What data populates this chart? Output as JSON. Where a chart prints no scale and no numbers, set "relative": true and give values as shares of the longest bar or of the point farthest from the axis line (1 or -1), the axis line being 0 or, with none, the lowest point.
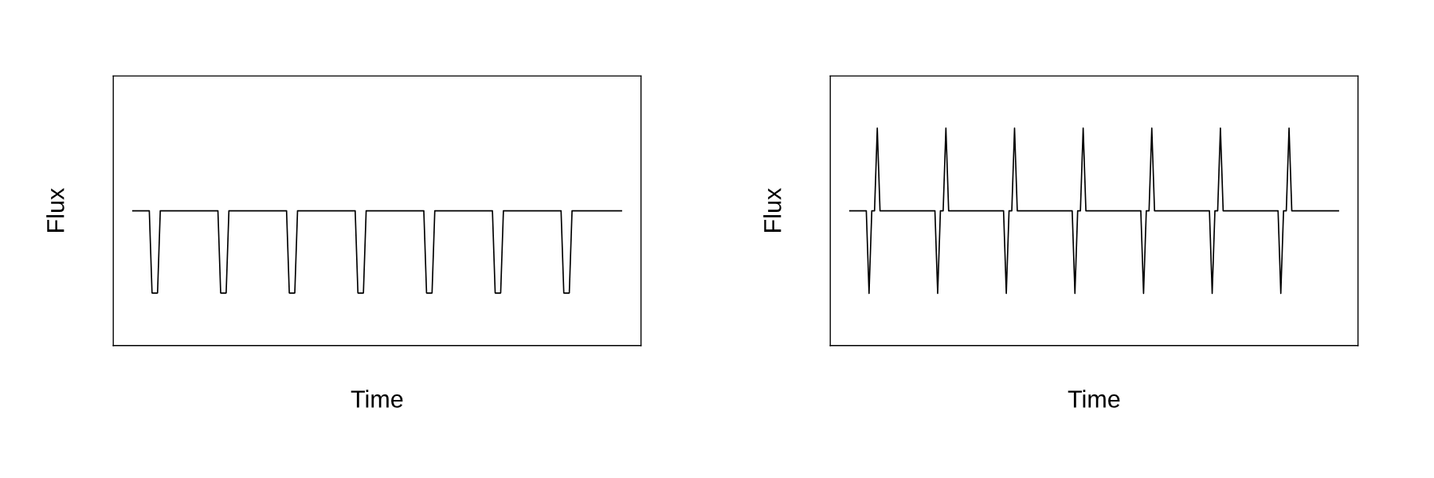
{
  "chart_data": [
    {
      "type": "line",
      "relative": true,
      "xlabel": "Time",
      "ylabel": "Flux",
      "tick_labels": false,
      "legend": false,
      "categories": [
        null,
        null,
        null,
        null,
        null,
        null,
        null,
        null,
        null,
        null,
        null,
        null,
        null,
        null,
        null,
        null,
        null,
        null,
        null,
        null,
        null,
        null,
        null,
        null,
        null,
        null,
        null,
        null,
        null,
        null,
        null,
        null,
        null,
        null,
        null,
        null,
        null,
        null,
        null,
        null,
        null,
        null,
        null,
        null,
        null,
        null,
        null,
        null,
        null,
        null,
        null,
        null,
        null,
        null,
        null,
        null,
        null,
        null,
        null,
        null,
        null,
        null,
        null,
        null,
        null,
        null,
        null,
        null,
        null,
        null,
        null,
        null,
        null,
        null,
        null,
        null,
        null,
        null,
        null,
        null,
        null,
        null,
        null,
        null,
        null,
        null,
        null,
        null,
        null,
        null,
        null,
        null,
        null,
        null,
        null,
        null,
        null,
        null,
        null,
        null,
        null,
        null,
        null,
        null,
        null,
        null,
        null,
        null,
        null,
        null,
        null,
        null,
        null,
        null,
        null,
        null,
        null,
        null,
        null,
        null,
        null,
        null,
        null,
        null,
        null,
        null,
        null,
        null,
        null,
        null,
        null,
        null,
        null,
        null,
        null,
        null,
        null,
        null,
        null,
        null,
        null,
        null,
        null,
        null,
        null,
        null,
        null,
        null,
        null,
        null,
        null,
        null,
        null,
        null,
        null,
        null,
        null,
        null,
        null,
        null,
        null,
        null,
        null,
        null,
        null,
        null,
        null,
        null,
        null,
        null,
        null,
        null,
        null,
        null,
        null,
        null,
        null,
        null,
        null
      ],
      "series": [
        {
          "color": "#000000",
          "values": [
            1,
            1,
            1,
            1,
            1,
            1,
            1,
            0.39,
            0.39,
            0.39,
            1,
            1,
            1,
            1,
            1,
            1,
            1,
            1,
            1,
            1,
            1,
            1,
            1,
            1,
            1,
            1,
            1,
            1,
            1,
            1,
            1,
            1,
            0.39,
            0.39,
            0.39,
            1,
            1,
            1,
            1,
            1,
            1,
            1,
            1,
            1,
            1,
            1,
            1,
            1,
            1,
            1,
            1,
            1,
            1,
            1,
            1,
            1,
            1,
            0.39,
            0.39,
            0.39,
            1,
            1,
            1,
            1,
            1,
            1,
            1,
            1,
            1,
            1,
            1,
            1,
            1,
            1,
            1,
            1,
            1,
            1,
            1,
            1,
            1,
            1,
            0.39,
            0.39,
            0.39,
            1,
            1,
            1,
            1,
            1,
            1,
            1,
            1,
            1,
            1,
            1,
            1,
            1,
            1,
            1,
            1,
            1,
            1,
            1,
            1,
            1,
            1,
            0.39,
            0.39,
            0.39,
            1,
            1,
            1,
            1,
            1,
            1,
            1,
            1,
            1,
            1,
            1,
            1,
            1,
            1,
            1,
            1,
            1,
            1,
            1,
            1,
            1,
            1,
            0.39,
            0.39,
            0.39,
            1,
            1,
            1,
            1,
            1,
            1,
            1,
            1,
            1,
            1,
            1,
            1,
            1,
            1,
            1,
            1,
            1,
            1,
            1,
            1,
            1,
            1,
            0.39,
            0.39,
            0.39,
            1,
            1,
            1,
            1,
            1,
            1,
            1,
            1,
            1,
            1,
            1,
            1,
            1,
            1,
            1,
            1,
            1,
            1,
            1
          ]
        }
      ]
    },
    {
      "type": "line",
      "relative": true,
      "xlabel": "Time",
      "ylabel": "Flux",
      "tick_labels": false,
      "legend": false,
      "categories": [
        null,
        null,
        null,
        null,
        null,
        null,
        null,
        null,
        null,
        null,
        null,
        null,
        null,
        null,
        null,
        null,
        null,
        null,
        null,
        null,
        null,
        null,
        null,
        null,
        null,
        null,
        null,
        null,
        null,
        null,
        null,
        null,
        null,
        null,
        null,
        null,
        null,
        null,
        null,
        null,
        null,
        null,
        null,
        null,
        null,
        null,
        null,
        null,
        null,
        null,
        null,
        null,
        null,
        null,
        null,
        null,
        null,
        null,
        null,
        null,
        null,
        null,
        null,
        null,
        null,
        null,
        null,
        null,
        null,
        null,
        null,
        null,
        null,
        null,
        null,
        null,
        null,
        null,
        null,
        null,
        null,
        null,
        null,
        null,
        null,
        null,
        null,
        null,
        null,
        null,
        null,
        null,
        null,
        null,
        null,
        null,
        null,
        null,
        null,
        null,
        null,
        null,
        null,
        null,
        null,
        null,
        null,
        null,
        null,
        null,
        null,
        null,
        null,
        null,
        null,
        null,
        null,
        null,
        null,
        null,
        null,
        null,
        null,
        null,
        null,
        null,
        null,
        null,
        null,
        null,
        null,
        null,
        null,
        null,
        null,
        null,
        null,
        null,
        null,
        null,
        null,
        null,
        null,
        null,
        null,
        null,
        null,
        null,
        null,
        null,
        null,
        null,
        null,
        null,
        null,
        null,
        null,
        null,
        null,
        null,
        null,
        null,
        null,
        null,
        null,
        null,
        null,
        null,
        null,
        null,
        null,
        null,
        null,
        null,
        null,
        null,
        null,
        null,
        null
      ],
      "series": [
        {
          "color": "#000000",
          "values": [
            0.62,
            0.62,
            0.62,
            0.62,
            0.62,
            0.62,
            0.62,
            0.24,
            0.62,
            0.62,
            1,
            0.62,
            0.62,
            0.62,
            0.62,
            0.62,
            0.62,
            0.62,
            0.62,
            0.62,
            0.62,
            0.62,
            0.62,
            0.62,
            0.62,
            0.62,
            0.62,
            0.62,
            0.62,
            0.62,
            0.62,
            0.62,
            0.24,
            0.62,
            0.62,
            1,
            0.62,
            0.62,
            0.62,
            0.62,
            0.62,
            0.62,
            0.62,
            0.62,
            0.62,
            0.62,
            0.62,
            0.62,
            0.62,
            0.62,
            0.62,
            0.62,
            0.62,
            0.62,
            0.62,
            0.62,
            0.62,
            0.24,
            0.62,
            0.62,
            1,
            0.62,
            0.62,
            0.62,
            0.62,
            0.62,
            0.62,
            0.62,
            0.62,
            0.62,
            0.62,
            0.62,
            0.62,
            0.62,
            0.62,
            0.62,
            0.62,
            0.62,
            0.62,
            0.62,
            0.62,
            0.62,
            0.24,
            0.62,
            0.62,
            1,
            0.62,
            0.62,
            0.62,
            0.62,
            0.62,
            0.62,
            0.62,
            0.62,
            0.62,
            0.62,
            0.62,
            0.62,
            0.62,
            0.62,
            0.62,
            0.62,
            0.62,
            0.62,
            0.62,
            0.62,
            0.62,
            0.24,
            0.62,
            0.62,
            1,
            0.62,
            0.62,
            0.62,
            0.62,
            0.62,
            0.62,
            0.62,
            0.62,
            0.62,
            0.62,
            0.62,
            0.62,
            0.62,
            0.62,
            0.62,
            0.62,
            0.62,
            0.62,
            0.62,
            0.62,
            0.62,
            0.24,
            0.62,
            0.62,
            1,
            0.62,
            0.62,
            0.62,
            0.62,
            0.62,
            0.62,
            0.62,
            0.62,
            0.62,
            0.62,
            0.62,
            0.62,
            0.62,
            0.62,
            0.62,
            0.62,
            0.62,
            0.62,
            0.62,
            0.62,
            0.62,
            0.24,
            0.62,
            0.62,
            1,
            0.62,
            0.62,
            0.62,
            0.62,
            0.62,
            0.62,
            0.62,
            0.62,
            0.62,
            0.62,
            0.62,
            0.62,
            0.62,
            0.62,
            0.62,
            0.62,
            0.62,
            0.62
          ]
        }
      ]
    }
  ]
}
